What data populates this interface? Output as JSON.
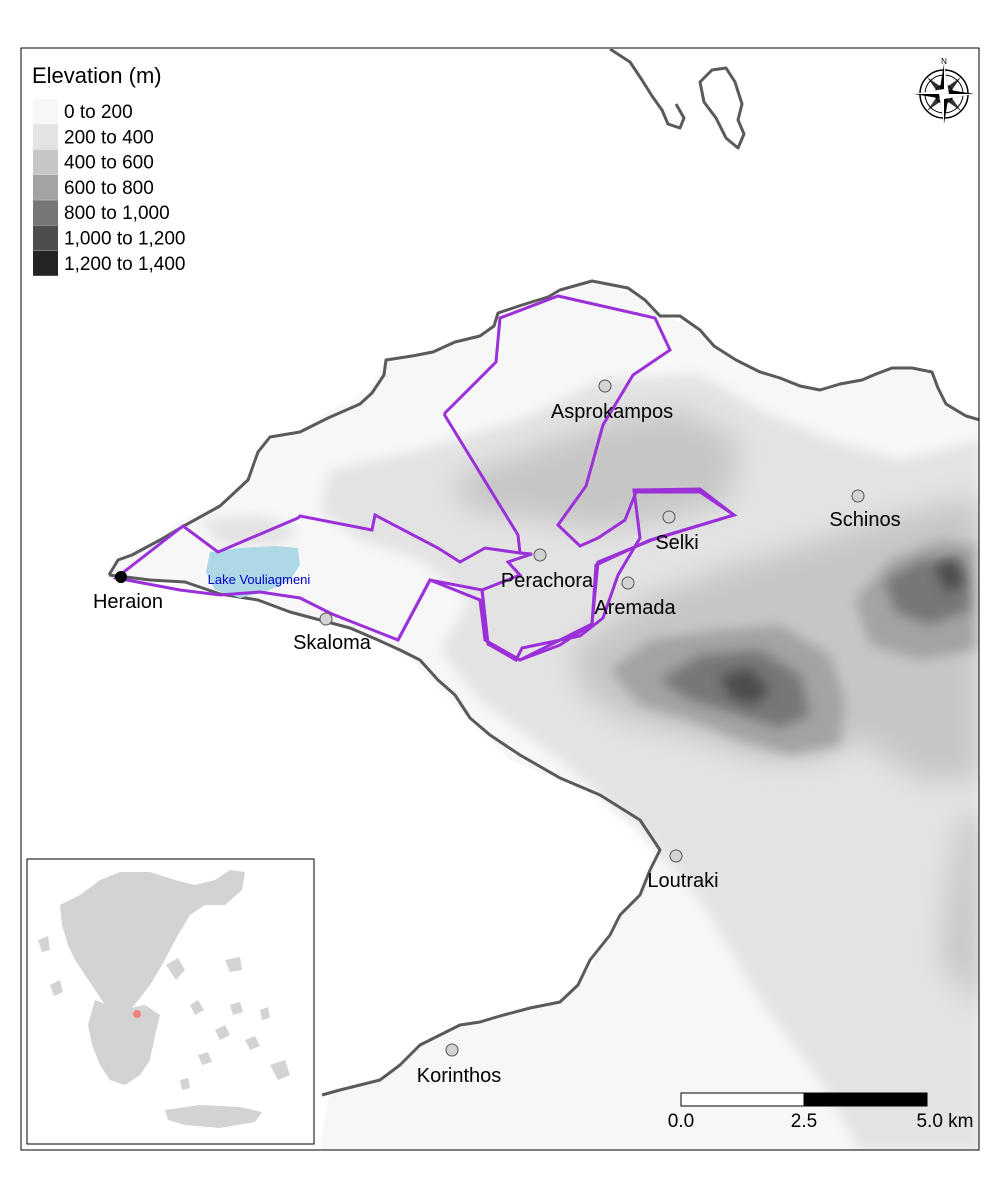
{
  "legend": {
    "title": "Elevation (m)",
    "classes": [
      {
        "label": "0 to 200",
        "color": "#f7f7f7"
      },
      {
        "label": "200 to 400",
        "color": "#e3e3e3"
      },
      {
        "label": "400 to 600",
        "color": "#c6c6c6"
      },
      {
        "label": "600 to 800",
        "color": "#a3a3a3"
      },
      {
        "label": "800 to 1,000",
        "color": "#777777"
      },
      {
        "label": "1,000 to 1,200",
        "color": "#4d4d4d"
      },
      {
        "label": "1,200 to 1,400",
        "color": "#242424"
      }
    ]
  },
  "places": {
    "heraion": "Heraion",
    "lake": "Lake Vouliagmeni",
    "skaloma": "Skaloma",
    "perachora": "Perachora",
    "asprokampos": "Asprokampos",
    "selki": "Selki",
    "aremada": "Aremada",
    "schinos": "Schinos",
    "loutraki": "Loutraki",
    "korinthos": "Korinthos"
  },
  "north_arrow": {
    "label": "N",
    "icon": "compass-rose-icon"
  },
  "scale_bar": {
    "labels": [
      "0.0",
      "2.5",
      "5.0 km"
    ]
  },
  "colors": {
    "boundary": "#9b30d9",
    "coastline": "#5a5a5a",
    "lake": "#add8e6",
    "lake_label": "#0000cd",
    "settlement": "#d3d3d3",
    "heraion_marker": "#000000",
    "inset_land": "#d3d3d3",
    "inset_marker": "#f08080"
  }
}
